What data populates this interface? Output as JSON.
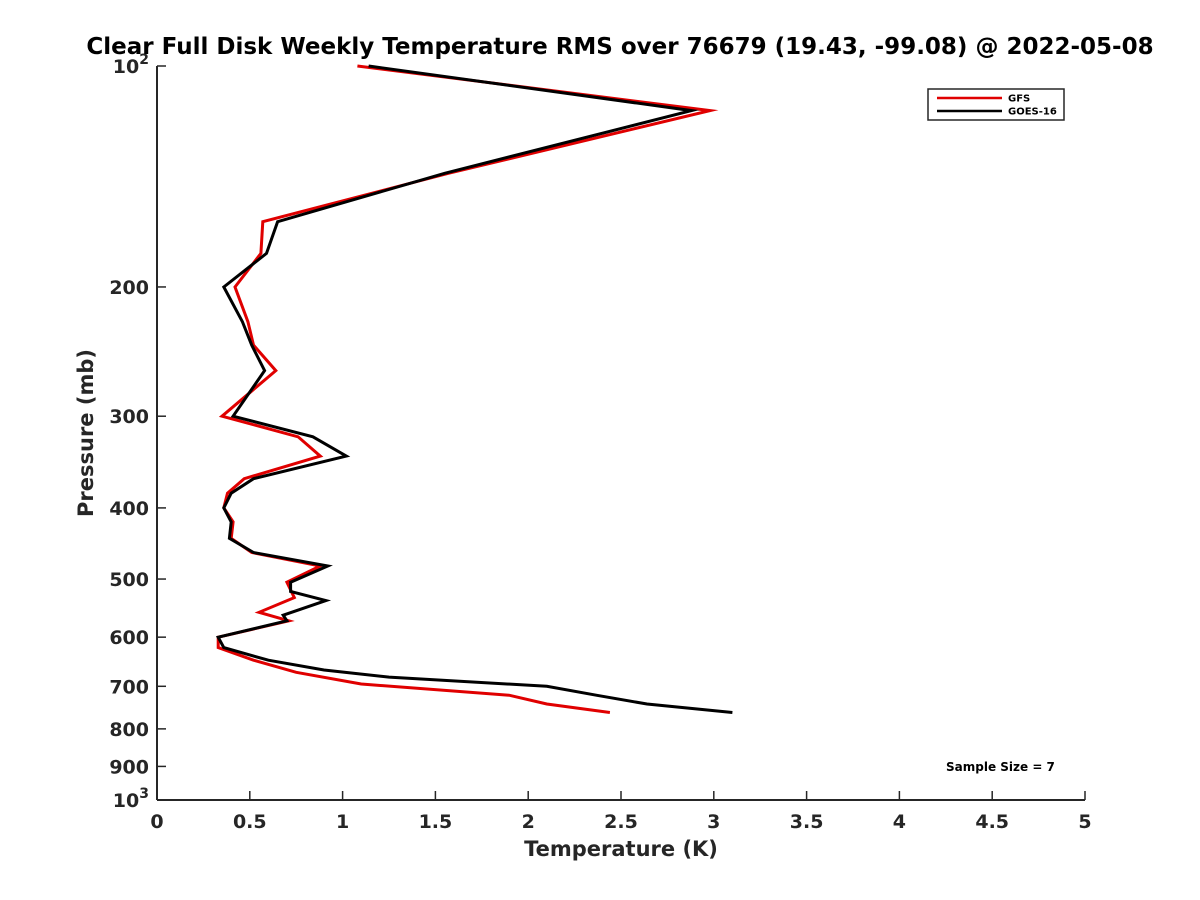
{
  "chart_data": {
    "type": "line",
    "title": "Clear Full Disk Weekly Temperature RMS over 76679 (19.43, -99.08) @ 2022-05-08",
    "xlabel": "Temperature (K)",
    "ylabel": "Pressure (mb)",
    "xlim": [
      0,
      5
    ],
    "ylim": [
      100,
      1000
    ],
    "yscale": "log",
    "y_reversed": true,
    "xticks": [
      0,
      0.5,
      1,
      1.5,
      2,
      2.5,
      3,
      3.5,
      4,
      4.5,
      5
    ],
    "xtick_labels": [
      "0",
      "0.5",
      "1",
      "1.5",
      "2",
      "2.5",
      "3",
      "3.5",
      "4",
      "4.5",
      "5"
    ],
    "yticks": [
      100,
      200,
      300,
      400,
      500,
      600,
      700,
      800,
      900,
      1000
    ],
    "ytick_labels": [
      {
        "base": "10",
        "exp": "2"
      },
      {
        "base": "200",
        "exp": ""
      },
      {
        "base": "300",
        "exp": ""
      },
      {
        "base": "400",
        "exp": ""
      },
      {
        "base": "500",
        "exp": ""
      },
      {
        "base": "600",
        "exp": ""
      },
      {
        "base": "700",
        "exp": ""
      },
      {
        "base": "800",
        "exp": ""
      },
      {
        "base": "900",
        "exp": ""
      },
      {
        "base": "10",
        "exp": "3"
      }
    ],
    "grid": false,
    "legend_position": "top-right",
    "series": [
      {
        "name": "GFS",
        "color": "#e00000",
        "points": [
          [
            1.08,
            100
          ],
          [
            2.98,
            115
          ],
          [
            1.57,
            140
          ],
          [
            0.57,
            163
          ],
          [
            0.56,
            180
          ],
          [
            0.42,
            200
          ],
          [
            0.49,
            223
          ],
          [
            0.52,
            240
          ],
          [
            0.64,
            260
          ],
          [
            0.35,
            300
          ],
          [
            0.76,
            320
          ],
          [
            0.88,
            340
          ],
          [
            0.47,
            365
          ],
          [
            0.38,
            382
          ],
          [
            0.36,
            400
          ],
          [
            0.41,
            418
          ],
          [
            0.4,
            440
          ],
          [
            0.51,
            460
          ],
          [
            0.88,
            480
          ],
          [
            0.7,
            505
          ],
          [
            0.74,
            530
          ],
          [
            0.55,
            555
          ],
          [
            0.71,
            570
          ],
          [
            0.33,
            600
          ],
          [
            0.33,
            620
          ],
          [
            0.52,
            645
          ],
          [
            0.75,
            670
          ],
          [
            1.1,
            695
          ],
          [
            1.9,
            720
          ],
          [
            2.1,
            740
          ],
          [
            2.44,
            760
          ]
        ]
      },
      {
        "name": "GOES-16",
        "color": "#000000",
        "points": [
          [
            1.14,
            100
          ],
          [
            2.88,
            115
          ],
          [
            1.55,
            140
          ],
          [
            0.65,
            163
          ],
          [
            0.59,
            180
          ],
          [
            0.36,
            200
          ],
          [
            0.46,
            223
          ],
          [
            0.51,
            240
          ],
          [
            0.58,
            260
          ],
          [
            0.41,
            300
          ],
          [
            0.84,
            320
          ],
          [
            1.02,
            340
          ],
          [
            0.52,
            365
          ],
          [
            0.4,
            382
          ],
          [
            0.36,
            400
          ],
          [
            0.4,
            418
          ],
          [
            0.39,
            440
          ],
          [
            0.52,
            460
          ],
          [
            0.92,
            480
          ],
          [
            0.72,
            505
          ],
          [
            0.72,
            520
          ],
          [
            0.91,
            535
          ],
          [
            0.68,
            560
          ],
          [
            0.7,
            570
          ],
          [
            0.33,
            600
          ],
          [
            0.36,
            620
          ],
          [
            0.6,
            645
          ],
          [
            0.9,
            665
          ],
          [
            1.25,
            680
          ],
          [
            2.1,
            700
          ],
          [
            2.37,
            720
          ],
          [
            2.64,
            740
          ],
          [
            3.1,
            760
          ]
        ]
      }
    ],
    "annotation": "Sample Size = 7"
  }
}
